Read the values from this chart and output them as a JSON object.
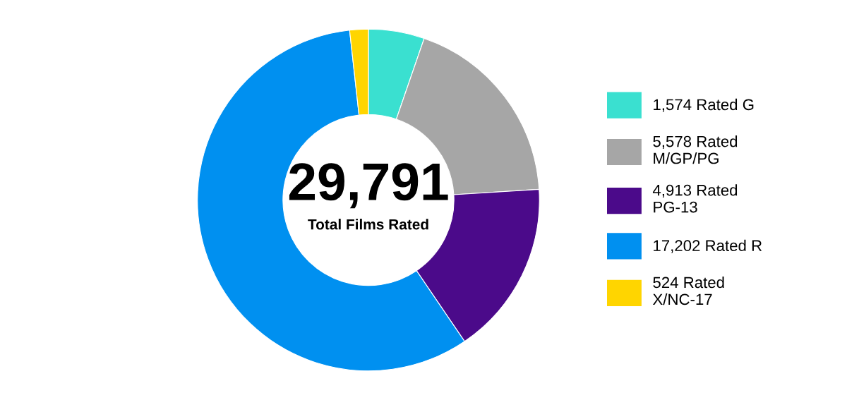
{
  "chart_data": {
    "type": "donut",
    "categories": [
      "1,574 Rated G",
      "5,578 Rated M/GP/PG",
      "4,913 Rated PG-13",
      "17,202 Rated R",
      "524 Rated X/NC-17"
    ],
    "values": [
      1574,
      5578,
      4913,
      17202,
      524
    ],
    "colors": [
      "#3ae0d0",
      "#a6a6a6",
      "#4b0a8a",
      "#0090f0",
      "#ffd500"
    ],
    "annotations": [
      "29,791",
      "Total Films Rated"
    ],
    "legend": "right"
  }
}
